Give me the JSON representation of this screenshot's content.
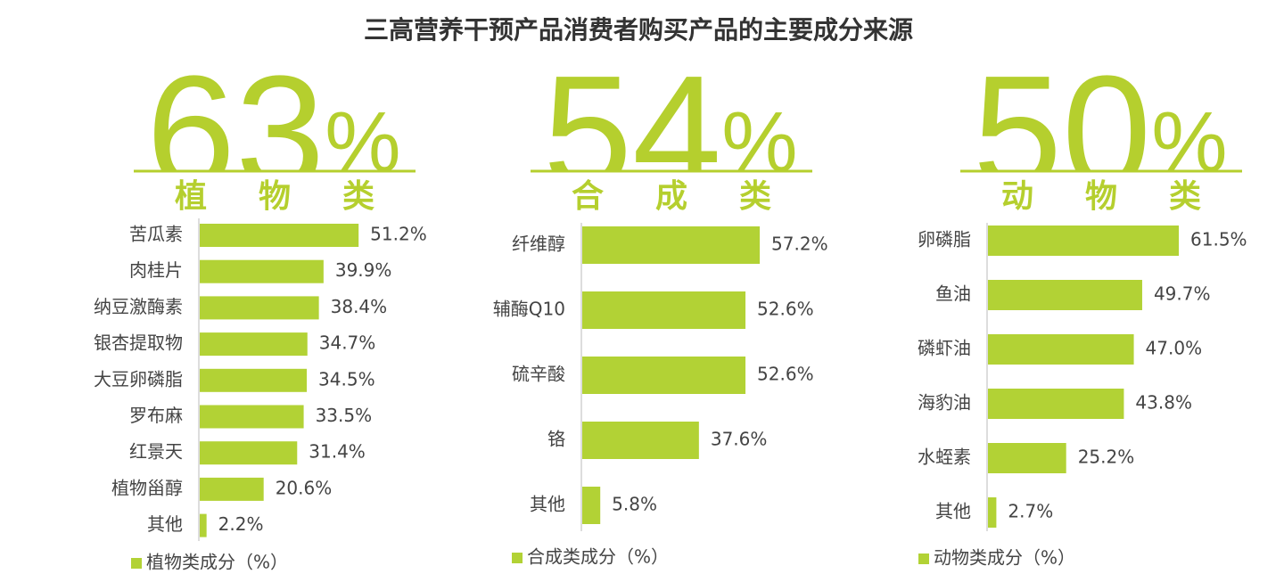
{
  "title": "三高营养干预产品消费者购买产品的主要成分来源",
  "chart_data": [
    {
      "type": "bar",
      "orientation": "horizontal",
      "headline": "63%",
      "group": "植物类",
      "categories": [
        "苦瓜素",
        "肉桂片",
        "纳豆激酶素",
        "银杏提取物",
        "大豆卵磷脂",
        "罗布麻",
        "红景天",
        "植物甾醇",
        "其他"
      ],
      "series": [
        {
          "name": "植物类成分（%）",
          "color": "#b2d235",
          "values": [
            51.2,
            39.9,
            38.4,
            34.7,
            34.5,
            33.5,
            31.4,
            20.6,
            2.2
          ],
          "value_labels": [
            "51.2%",
            "39.9%",
            "38.4%",
            "34.7%",
            "34.5%",
            "33.5%",
            "31.4%",
            "20.6%",
            "2.2%"
          ]
        }
      ]
    },
    {
      "type": "bar",
      "orientation": "horizontal",
      "headline": "54%",
      "group": "合成类",
      "categories": [
        "纤维醇",
        "辅酶Q10",
        "硫辛酸",
        "铬",
        "其他"
      ],
      "series": [
        {
          "name": "合成类成分（%）",
          "color": "#b2d235",
          "values": [
            57.2,
            52.6,
            52.6,
            37.6,
            5.8
          ],
          "value_labels": [
            "57.2%",
            "52.6%",
            "52.6%",
            "37.6%",
            "5.8%"
          ]
        }
      ]
    },
    {
      "type": "bar",
      "orientation": "horizontal",
      "headline": "50%",
      "group": "动物类",
      "categories": [
        "卵磷脂",
        "鱼油",
        "磷虾油",
        "海豹油",
        "水蛭素",
        "其他"
      ],
      "series": [
        {
          "name": "动物类成分（%）",
          "color": "#b2d235",
          "values": [
            61.5,
            49.7,
            47.0,
            43.8,
            25.2,
            2.7
          ],
          "value_labels": [
            "61.5%",
            "49.7%",
            "47.0%",
            "43.8%",
            "25.2%",
            "2.7%"
          ]
        }
      ]
    }
  ]
}
